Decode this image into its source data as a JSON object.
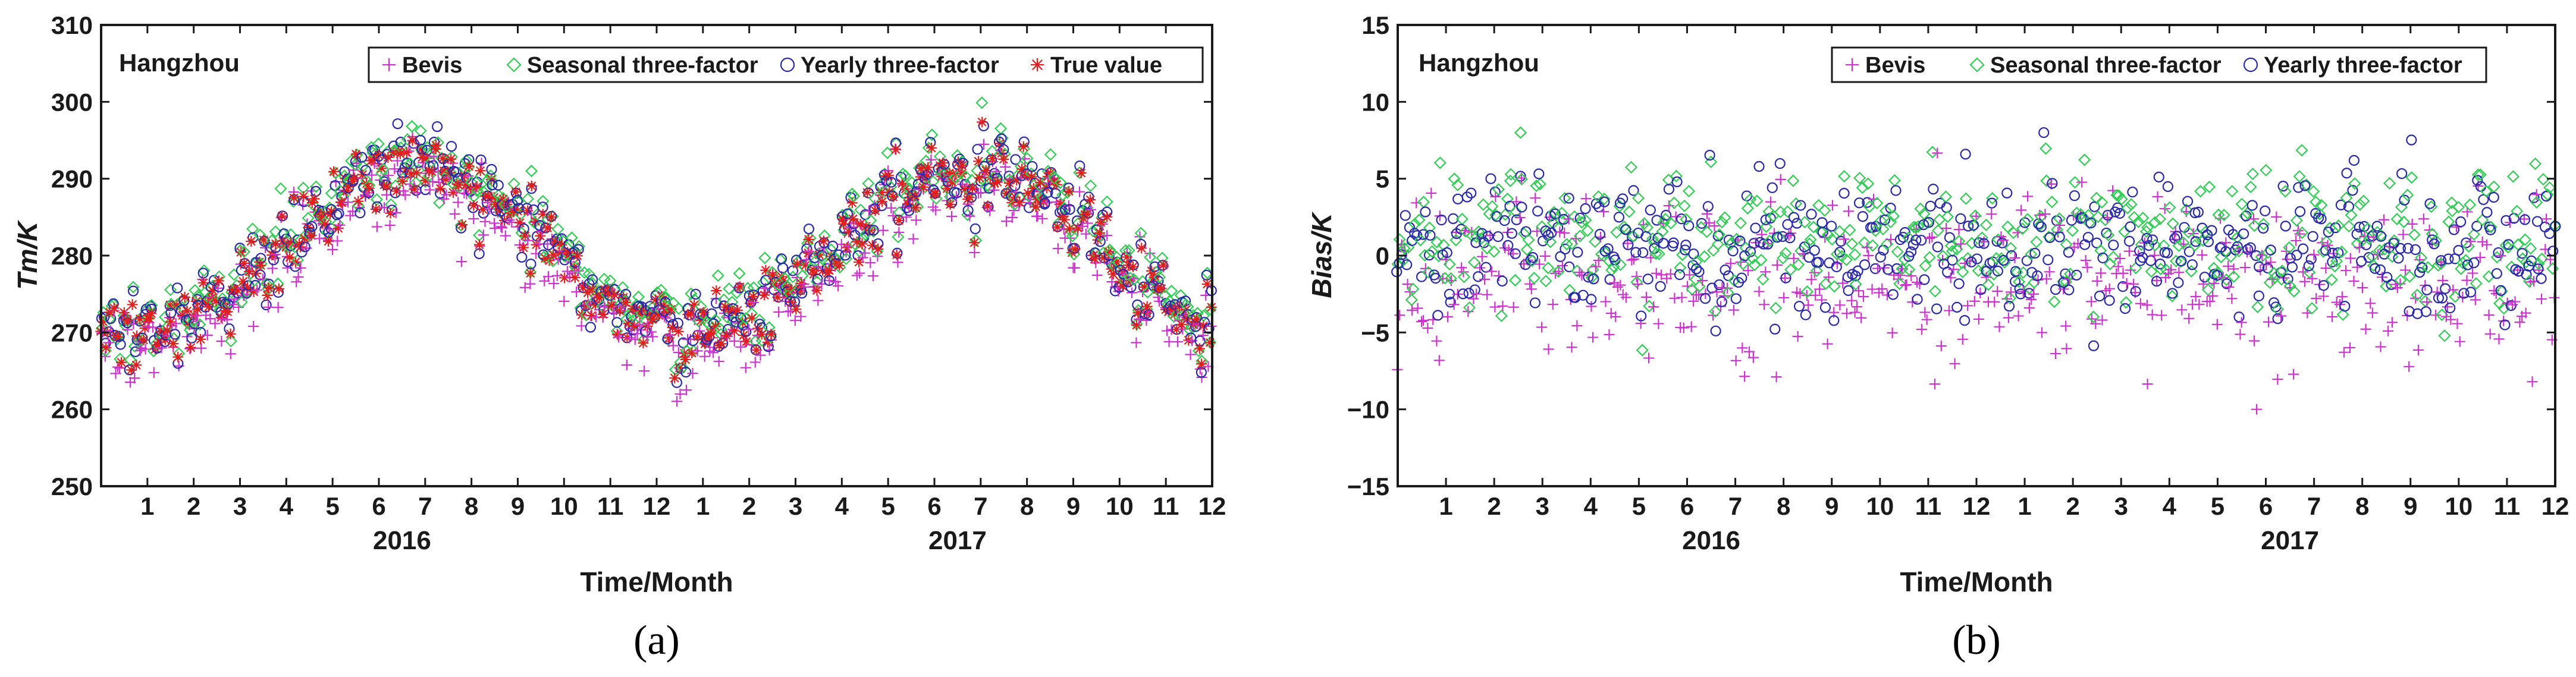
{
  "chart_data": [
    {
      "id": "a",
      "type": "scatter",
      "panel_label": "(a)",
      "station": "Hangzhou",
      "xlabel": "Time/Month",
      "ylabel": "Tm/K",
      "ylim": [
        250,
        310
      ],
      "yticks": [
        250,
        260,
        270,
        280,
        290,
        300,
        310
      ],
      "x_unit": "month index (0 = start of Jan 2016, 24 = end of Dec 2017)",
      "xlim": [
        0,
        24
      ],
      "month_ticks": [
        "1",
        "2",
        "3",
        "4",
        "5",
        "6",
        "7",
        "8",
        "9",
        "10",
        "11",
        "12",
        "1",
        "2",
        "3",
        "4",
        "5",
        "6",
        "7",
        "8",
        "9",
        "10",
        "11",
        "12"
      ],
      "years": [
        "2016",
        "2017"
      ],
      "legend": [
        "Bevis",
        "Seasonal three-factor",
        "Yearly three-factor",
        "True value"
      ],
      "series_model": {
        "description": "Daily Tm approximated by a seasonal cycle (~272 K winter minimum, ~292 K summer peak) with scatter",
        "true_value": {
          "mean": 280.5,
          "amplitude": 10.5,
          "peak_month": 6.8,
          "spread": 4.5
        },
        "bevis": {
          "offset": -1.5,
          "spread": 3.5
        },
        "seasonal_three_factor": {
          "offset": 0.8,
          "spread": 2.5
        },
        "yearly_three_factor": {
          "offset": 0.3,
          "spread": 2.5
        }
      }
    },
    {
      "id": "b",
      "type": "scatter",
      "panel_label": "(b)",
      "station": "Hangzhou",
      "xlabel": "Time/Month",
      "ylabel": "Bias/K",
      "ylim": [
        -15,
        15
      ],
      "yticks": [
        -15,
        -10,
        -5,
        0,
        5,
        10,
        15
      ],
      "ytick_labels": [
        "−15",
        "−10",
        "−5",
        "0",
        "5",
        "10",
        "15"
      ],
      "xlim": [
        0,
        24
      ],
      "month_ticks": [
        "1",
        "2",
        "3",
        "4",
        "5",
        "6",
        "7",
        "8",
        "9",
        "10",
        "11",
        "12",
        "1",
        "2",
        "3",
        "4",
        "5",
        "6",
        "7",
        "8",
        "9",
        "10",
        "11",
        "12"
      ],
      "years": [
        "2016",
        "2017"
      ],
      "legend": [
        "Bevis",
        "Seasonal three-factor",
        "Yearly three-factor"
      ],
      "series_model": {
        "description": "Daily bias relative to true value, scattered around zero",
        "bevis": {
          "mean": -1.5,
          "spread": 3.2,
          "range": [
            -10,
            8
          ]
        },
        "seasonal_three_factor": {
          "mean": 1.0,
          "spread": 2.5,
          "range": [
            -8,
            8
          ]
        },
        "yearly_three_factor": {
          "mean": 0.5,
          "spread": 2.5,
          "range": [
            -8,
            8
          ]
        }
      }
    }
  ],
  "colors": {
    "bevis": "#cc33cc",
    "seasonal": "#33cc55",
    "yearly": "#2a2aa8",
    "true_value": "#e02020",
    "axis": "#1a1a1a"
  }
}
